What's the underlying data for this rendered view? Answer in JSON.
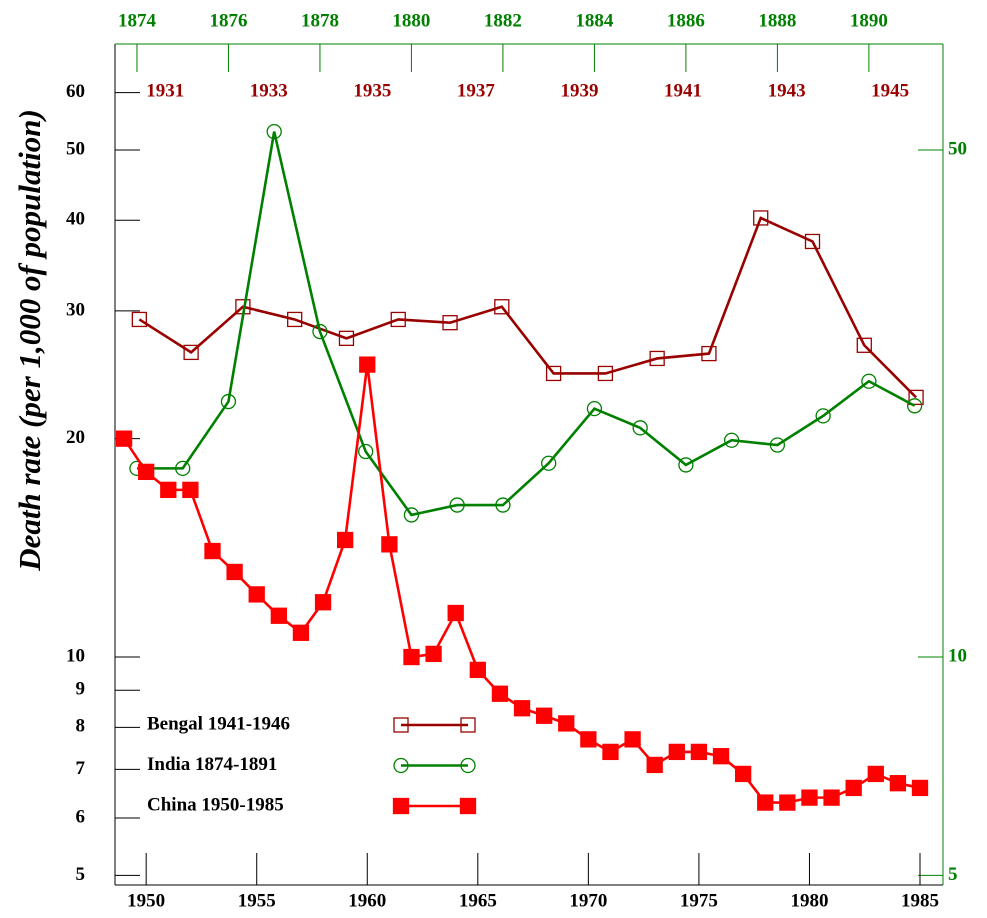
{
  "chart_data": {
    "type": "line",
    "y_label": "Death rate (per 1,000 of population)",
    "ylog": true,
    "ylim": [
      4.85,
      70
    ],
    "yticks": [
      5,
      6,
      7,
      8,
      9,
      10,
      20,
      30,
      40,
      50,
      60
    ],
    "y2lim": [
      4.85,
      70
    ],
    "y2ticks": [
      5,
      10,
      50
    ],
    "y2color": "#008000",
    "xlim": [
      1948.59,
      1986.04
    ],
    "xticks": [
      1950,
      1955,
      1960,
      1965,
      1970,
      1975,
      1980,
      1985
    ],
    "x2lim": [
      1873.52,
      1891.62
    ],
    "x2ticks": [
      1874,
      1876,
      1878,
      1880,
      1882,
      1884,
      1886,
      1888,
      1890
    ],
    "x2color": "#008000",
    "x3lim": [
      1930.03,
      1946.02
    ],
    "x3ticks": [
      1931,
      1933,
      1935,
      1937,
      1939,
      1941,
      1943,
      1945
    ],
    "x3color": "#990000",
    "legend": "lower left",
    "series": [
      {
        "name": "Bengal 1941-1946",
        "color": "#990000",
        "marker": "open-square",
        "xaxis": "x3",
        "x": [
          1930.5,
          1931.5,
          1932.5,
          1933.5,
          1934.5,
          1935.5,
          1936.5,
          1937.5,
          1938.5,
          1939.5,
          1940.5,
          1941.5,
          1942.5,
          1943.5,
          1944.5,
          1945.5
        ],
        "values": [
          29.2,
          26.3,
          30.4,
          29.2,
          27.5,
          29.2,
          28.9,
          30.4,
          24.6,
          24.6,
          25.8,
          26.2,
          40.3,
          37.4,
          26.9,
          22.8
        ]
      },
      {
        "name": "India 1874-1891",
        "color": "#008000",
        "marker": "open-circle",
        "xaxis": "x2",
        "x": [
          1874,
          1875,
          1876,
          1877,
          1878,
          1879,
          1880,
          1881,
          1882,
          1883,
          1884,
          1885,
          1886,
          1887,
          1888,
          1889,
          1890,
          1891
        ],
        "values": [
          18.2,
          18.2,
          22.5,
          53.0,
          28.1,
          19.2,
          15.7,
          16.2,
          16.2,
          18.5,
          22.0,
          20.7,
          18.4,
          19.9,
          19.6,
          21.5,
          24.0,
          22.2
        ]
      },
      {
        "name": "China 1950-1985",
        "color": "#ff0000",
        "marker": "filled-square",
        "xaxis": "x",
        "x": [
          1949,
          1950,
          1951,
          1952,
          1953,
          1954,
          1955,
          1956,
          1957,
          1958,
          1959,
          1960,
          1961,
          1962,
          1963,
          1964,
          1965,
          1966,
          1967,
          1968,
          1969,
          1970,
          1971,
          1972,
          1973,
          1974,
          1975,
          1976,
          1977,
          1978,
          1979,
          1980,
          1981,
          1982,
          1983,
          1984,
          1985
        ],
        "values": [
          20.0,
          18.0,
          17.0,
          17.0,
          14.0,
          13.1,
          12.2,
          11.4,
          10.8,
          11.9,
          14.5,
          25.3,
          14.3,
          10.0,
          10.1,
          11.5,
          9.6,
          8.9,
          8.5,
          8.3,
          8.1,
          7.7,
          7.4,
          7.7,
          7.1,
          7.4,
          7.4,
          7.3,
          6.9,
          6.3,
          6.3,
          6.4,
          6.4,
          6.6,
          6.9,
          6.7,
          6.6
        ]
      }
    ]
  }
}
